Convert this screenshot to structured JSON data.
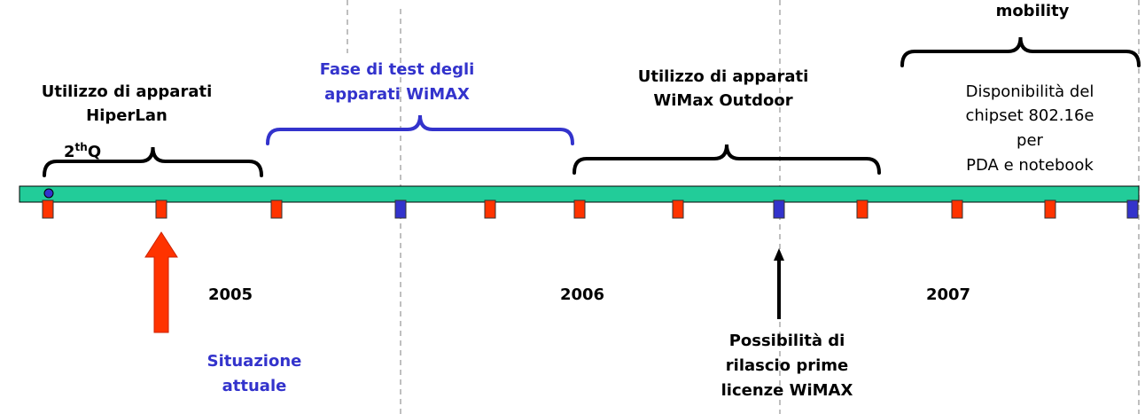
{
  "phases": [
    {
      "lines": [
        "Utilizzo di apparati",
        "HiperLan"
      ]
    },
    {
      "lines": [
        "Fase di test degli",
        "apparati WiMAX"
      ]
    },
    {
      "lines": [
        "Utilizzo di apparati",
        "WiMax Outdoor"
      ]
    }
  ],
  "quarter": {
    "number": "2",
    "suffix": "th",
    "letter": "Q"
  },
  "mobility": {
    "title": "mobility",
    "lines": [
      "Disponibilità del",
      "chipset 802.16e",
      "per",
      "PDA e notebook"
    ]
  },
  "years": [
    "2005",
    "2006",
    "2007"
  ],
  "current": {
    "lines": [
      "Situazione",
      "attuale"
    ]
  },
  "license": {
    "lines": [
      "Possibilità di",
      "rilascio prime",
      "licenze WiMAX"
    ]
  }
}
